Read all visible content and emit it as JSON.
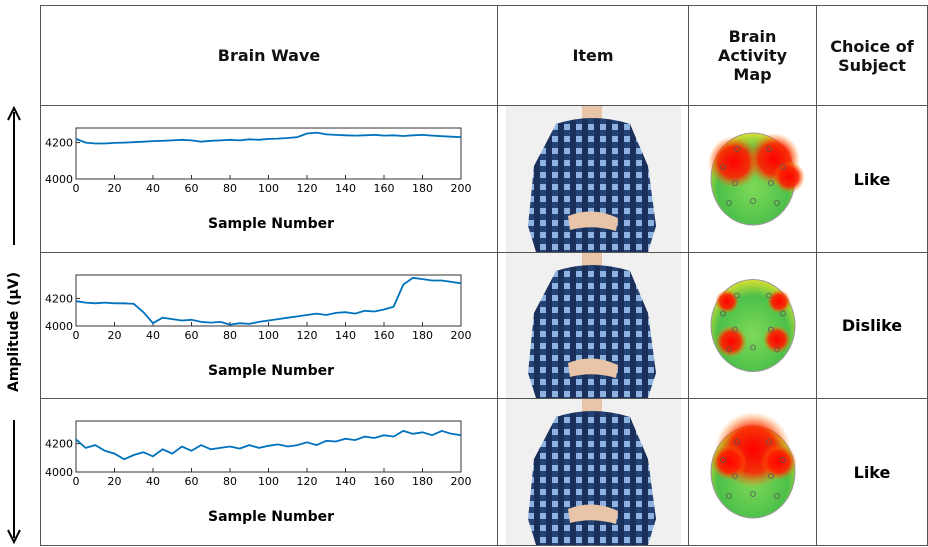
{
  "y_axis_label": "Amplitude (µV)",
  "table": {
    "headers": [
      "Brain Wave",
      "Item",
      "Brain Activity Map",
      "Choice of Subject"
    ],
    "rows": [
      {
        "chart": {
          "type": "line",
          "x_label": "Sample Number",
          "x": [
            0,
            5,
            10,
            15,
            20,
            25,
            30,
            35,
            40,
            45,
            50,
            55,
            60,
            65,
            70,
            75,
            80,
            85,
            90,
            95,
            100,
            105,
            110,
            115,
            120,
            125,
            130,
            135,
            140,
            145,
            150,
            155,
            160,
            165,
            170,
            175,
            180,
            185,
            190,
            195,
            200
          ],
          "series": [
            {
              "color": "#0072bd",
              "values": [
                4220,
                4200,
                4195,
                4195,
                4198,
                4200,
                4202,
                4205,
                4208,
                4210,
                4212,
                4215,
                4212,
                4205,
                4210,
                4212,
                4215,
                4212,
                4218,
                4215,
                4220,
                4222,
                4225,
                4230,
                4250,
                4255,
                4245,
                4242,
                4240,
                4238,
                4240,
                4242,
                4238,
                4240,
                4236,
                4240,
                4242,
                4238,
                4235,
                4232,
                4230
              ]
            }
          ],
          "xlim": [
            0,
            200
          ],
          "ylim": [
            4000,
            4280
          ],
          "xticks": [
            0,
            20,
            40,
            60,
            80,
            100,
            120,
            140,
            160,
            180,
            200
          ],
          "yticks": [
            4000,
            4200
          ]
        },
        "choice": "Like"
      },
      {
        "chart": {
          "type": "line",
          "x_label": "Sample Number",
          "x": [
            0,
            5,
            10,
            15,
            20,
            25,
            30,
            35,
            40,
            45,
            50,
            55,
            60,
            65,
            70,
            75,
            80,
            85,
            90,
            95,
            100,
            105,
            110,
            115,
            120,
            125,
            130,
            135,
            140,
            145,
            150,
            155,
            160,
            165,
            170,
            175,
            180,
            185,
            190,
            195,
            200
          ],
          "series": [
            {
              "color": "#0072bd",
              "values": [
                4180,
                4170,
                4165,
                4170,
                4165,
                4165,
                4160,
                4100,
                4020,
                4060,
                4050,
                4040,
                4045,
                4030,
                4025,
                4030,
                4010,
                4020,
                4015,
                4030,
                4040,
                4050,
                4060,
                4070,
                4080,
                4090,
                4080,
                4095,
                4100,
                4090,
                4110,
                4105,
                4120,
                4140,
                4300,
                4350,
                4340,
                4330,
                4330,
                4320,
                4310
              ]
            }
          ],
          "xlim": [
            0,
            200
          ],
          "ylim": [
            4000,
            4370
          ],
          "xticks": [
            0,
            20,
            40,
            60,
            80,
            100,
            120,
            140,
            160,
            180,
            200
          ],
          "yticks": [
            4000,
            4200
          ]
        },
        "choice": "Dislike"
      },
      {
        "chart": {
          "type": "line",
          "x_label": "Sample Number",
          "x": [
            0,
            5,
            10,
            15,
            20,
            25,
            30,
            35,
            40,
            45,
            50,
            55,
            60,
            65,
            70,
            75,
            80,
            85,
            90,
            95,
            100,
            105,
            110,
            115,
            120,
            125,
            130,
            135,
            140,
            145,
            150,
            155,
            160,
            165,
            170,
            175,
            180,
            185,
            190,
            195,
            200
          ],
          "series": [
            {
              "color": "#0072bd",
              "values": [
                4230,
                4170,
                4190,
                4150,
                4130,
                4090,
                4120,
                4140,
                4110,
                4160,
                4130,
                4180,
                4150,
                4190,
                4160,
                4170,
                4180,
                4165,
                4190,
                4170,
                4185,
                4195,
                4180,
                4190,
                4210,
                4190,
                4220,
                4215,
                4235,
                4225,
                4250,
                4240,
                4260,
                4250,
                4290,
                4270,
                4280,
                4260,
                4290,
                4270,
                4260
              ]
            }
          ],
          "xlim": [
            0,
            200
          ],
          "ylim": [
            4000,
            4360
          ],
          "xticks": [
            0,
            20,
            40,
            60,
            80,
            100,
            120,
            140,
            160,
            180,
            200
          ],
          "yticks": [
            4000,
            4200
          ]
        },
        "choice": "Like"
      }
    ]
  }
}
